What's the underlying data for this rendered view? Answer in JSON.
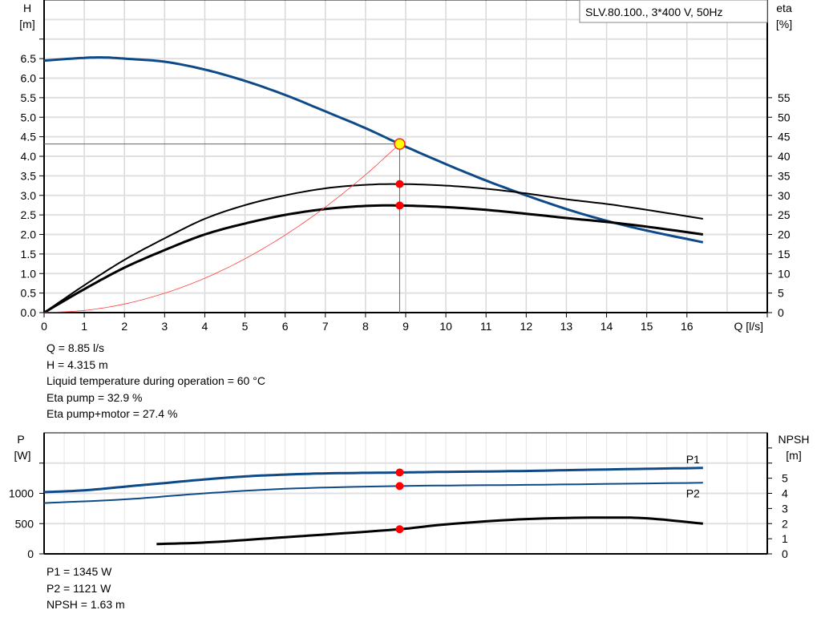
{
  "chart_data": [
    {
      "type": "line",
      "title": "SLV.80.100., 3*400 V, 50Hz",
      "xlabel": "Q [l/s]",
      "ylabel": "H\n[m]",
      "y2label": "eta\n[%]",
      "xlim": [
        0,
        18
      ],
      "ylim": [
        0,
        8
      ],
      "y2lim": [
        0,
        80
      ],
      "grid": true,
      "xticks": [
        "0",
        "1",
        "2",
        "3",
        "4",
        "5",
        "6",
        "7",
        "8",
        "9",
        "10",
        "11",
        "12",
        "13",
        "14",
        "15",
        "16"
      ],
      "yticks": [
        "0.0",
        "0.5",
        "1.0",
        "1.5",
        "2.0",
        "2.5",
        "3.0",
        "3.5",
        "4.0",
        "4.5",
        "5.0",
        "5.5",
        "6.0",
        "6.5"
      ],
      "y2ticks": [
        "0",
        "5",
        "10",
        "15",
        "20",
        "25",
        "30",
        "35",
        "40",
        "45",
        "50",
        "55"
      ],
      "series": [
        {
          "axis": "H",
          "color": "#0d4a87",
          "width": 3,
          "x": [
            0,
            1,
            1.5,
            2,
            3,
            4,
            5,
            6,
            7,
            8,
            8.85,
            10,
            11,
            12,
            13,
            14,
            15,
            16.4
          ],
          "y": [
            6.45,
            6.52,
            6.53,
            6.5,
            6.42,
            6.22,
            5.93,
            5.57,
            5.15,
            4.72,
            4.315,
            3.8,
            3.38,
            3.0,
            2.65,
            2.35,
            2.1,
            1.8
          ]
        },
        {
          "axis": "eta",
          "color": "#000000",
          "width": 2,
          "x": [
            0,
            1,
            2,
            3,
            4,
            5,
            6,
            7,
            8,
            8.85,
            10,
            11,
            12,
            13,
            14,
            15,
            16.4
          ],
          "y": [
            0,
            7,
            13.5,
            19,
            24,
            27.5,
            30,
            31.8,
            32.7,
            32.9,
            32.5,
            31.7,
            30.5,
            29,
            27.8,
            26.3,
            24
          ]
        },
        {
          "axis": "eta",
          "color": "#000000",
          "width": 3,
          "x": [
            0,
            1,
            2,
            3,
            4,
            5,
            6,
            7,
            8,
            8.85,
            10,
            11,
            12,
            13,
            14,
            15,
            16.4
          ],
          "y": [
            0,
            6,
            11.5,
            16,
            20,
            22.8,
            25,
            26.5,
            27.3,
            27.4,
            27,
            26.3,
            25.3,
            24.2,
            23.2,
            22,
            20
          ]
        },
        {
          "axis": "H",
          "color": "#ff4040",
          "width": 0.8,
          "x": [
            0,
            1,
            2,
            3,
            4,
            5,
            6,
            7,
            8,
            8.85
          ],
          "y": [
            0,
            0.055,
            0.22,
            0.496,
            0.88,
            1.378,
            1.984,
            2.7,
            3.527,
            4.315
          ]
        }
      ],
      "operating_point": {
        "q": 8.85,
        "h": 4.315,
        "eta_pump": 32.9,
        "eta_total": 27.4
      },
      "annotations": [
        "Q = 8.85 l/s",
        "H = 4.315 m",
        "Liquid temperature during operation = 60 °C",
        "Eta pump = 32.9 %",
        "Eta pump+motor = 27.4 %"
      ]
    },
    {
      "type": "line",
      "ylabel": "P\n[W]",
      "y2label": "NPSH\n[m]",
      "xlim": [
        0,
        18
      ],
      "ylim": [
        0,
        2000
      ],
      "y2lim": [
        0,
        8
      ],
      "grid": true,
      "yticks": [
        "0",
        "500",
        "1000"
      ],
      "y2ticks": [
        "0",
        "1",
        "2",
        "3",
        "4",
        "5"
      ],
      "series": [
        {
          "name": "P1",
          "axis": "P",
          "color": "#0d4a87",
          "width": 3,
          "x": [
            0,
            1,
            2,
            3,
            4,
            5,
            6,
            7,
            8.85,
            10,
            12,
            14,
            16.4
          ],
          "y": [
            1020,
            1050,
            1110,
            1170,
            1230,
            1280,
            1310,
            1330,
            1345,
            1355,
            1370,
            1395,
            1420
          ]
        },
        {
          "name": "P2",
          "axis": "P",
          "color": "#0d4a87",
          "width": 2,
          "x": [
            0,
            2,
            4,
            6,
            8.85,
            12,
            16.4
          ],
          "y": [
            840,
            900,
            1000,
            1075,
            1121,
            1140,
            1175
          ]
        },
        {
          "axis": "NPSH",
          "color": "#000000",
          "width": 3,
          "x": [
            2.8,
            4,
            6,
            8.85,
            10,
            12,
            14,
            15,
            16.4
          ],
          "y": [
            0.65,
            0.75,
            1.1,
            1.63,
            1.95,
            2.3,
            2.4,
            2.35,
            2.0
          ]
        }
      ],
      "operating_point": {
        "q": 8.85,
        "p1": 1345,
        "p2": 1121,
        "npsh": 1.63
      },
      "annotations": [
        "P1 = 1345 W",
        "P2 = 1121 W",
        "NPSH = 1.63 m"
      ]
    }
  ]
}
